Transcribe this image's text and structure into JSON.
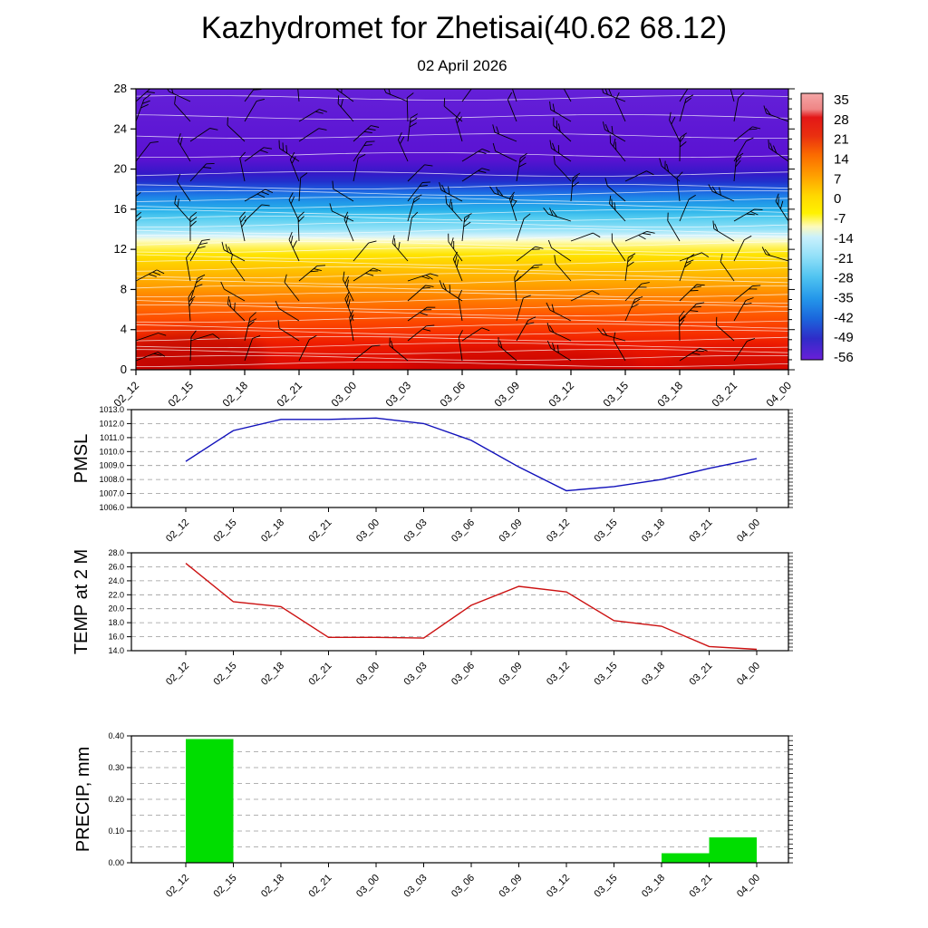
{
  "title": "Kazhydromet for Zhetisai(40.62 68.12)",
  "subtitle": "02 April 2026",
  "time_labels": [
    "02_12",
    "02_15",
    "02_18",
    "02_21",
    "03_00",
    "03_03",
    "03_06",
    "03_09",
    "03_12",
    "03_15",
    "03_18",
    "03_21",
    "04_00"
  ],
  "chart_data": [
    {
      "type": "heatmap",
      "name": "cross-section",
      "title": "02 April 2026",
      "description": "Time-height cross section: temperature shading with white contour lines and black wind barbs",
      "x_labels": [
        "02_12",
        "02_15",
        "02_18",
        "02_21",
        "03_00",
        "03_03",
        "03_06",
        "03_09",
        "03_12",
        "03_15",
        "03_18",
        "03_21",
        "04_00"
      ],
      "y_ticks": [
        "28",
        "24",
        "20",
        "16",
        "12",
        "8",
        "4",
        "0"
      ],
      "ylim": [
        0,
        28
      ],
      "fill_gradient_top_to_bottom": [
        [
          0,
          "#6420d8"
        ],
        [
          0.25,
          "#5a12d2"
        ],
        [
          0.3,
          "#3518c8"
        ],
        [
          0.33,
          "#2230cc"
        ],
        [
          0.36,
          "#1d5ee0"
        ],
        [
          0.39,
          "#1e8ae8"
        ],
        [
          0.43,
          "#27b0ea"
        ],
        [
          0.46,
          "#55cdf0"
        ],
        [
          0.5,
          "#93e2f8"
        ],
        [
          0.525,
          "#d8f4fb"
        ],
        [
          0.54,
          "#fdfcc8"
        ],
        [
          0.56,
          "#fff46a"
        ],
        [
          0.59,
          "#ffe400"
        ],
        [
          0.64,
          "#ffc400"
        ],
        [
          0.7,
          "#ffa000"
        ],
        [
          0.75,
          "#ff7d00"
        ],
        [
          0.8,
          "#ff5a00"
        ],
        [
          0.86,
          "#f93600"
        ],
        [
          0.91,
          "#ee1c00"
        ],
        [
          1,
          "#d80600"
        ]
      ],
      "colorbar": {
        "tick_labels": [
          "35",
          "28",
          "21",
          "14",
          "7",
          "0",
          "-7",
          "-14",
          "-21",
          "-28",
          "-35",
          "-42",
          "-49",
          "-56"
        ],
        "gradient_top_to_bottom": [
          [
            0,
            "#f4a6a6"
          ],
          [
            0.06,
            "#ef8585"
          ],
          [
            0.09,
            "#e31717"
          ],
          [
            0.16,
            "#e93010"
          ],
          [
            0.23,
            "#fb6a00"
          ],
          [
            0.31,
            "#ffa000"
          ],
          [
            0.385,
            "#ffd800"
          ],
          [
            0.45,
            "#fff200"
          ],
          [
            0.5,
            "#fdfabc"
          ],
          [
            0.54,
            "#c9f0fc"
          ],
          [
            0.615,
            "#8fdff8"
          ],
          [
            0.69,
            "#4fc3f0"
          ],
          [
            0.77,
            "#2497ea"
          ],
          [
            0.845,
            "#1b66dc"
          ],
          [
            0.92,
            "#2f2cc8"
          ],
          [
            1,
            "#6a1fd8"
          ]
        ]
      },
      "overlays": [
        "white-contour-lines",
        "wind-barbs"
      ]
    },
    {
      "type": "line",
      "name": "pmsl",
      "ylabel": "PMSL",
      "color": "#1111bb",
      "x_labels": [
        "02_12",
        "02_15",
        "02_18",
        "02_21",
        "03_00",
        "03_03",
        "03_06",
        "03_09",
        "03_12",
        "03_15",
        "03_18",
        "03_21",
        "04_00"
      ],
      "values": [
        1009.3,
        1011.5,
        1012.3,
        1012.3,
        1012.4,
        1012.0,
        1010.8,
        1008.9,
        1007.2,
        1007.5,
        1008.0,
        1008.8,
        1009.5
      ],
      "ylim": [
        1006,
        1013
      ],
      "y_ticks": [
        "1013.0",
        "1012.0",
        "1011.0",
        "1010.0",
        "1009.0",
        "1008.0",
        "1007.0",
        "1006.0"
      ],
      "grid_values": [
        1007,
        1008,
        1009,
        1010,
        1011,
        1012
      ],
      "grid_on": true,
      "legend": "none"
    },
    {
      "type": "line",
      "name": "temp2m",
      "ylabel": "TEMP at 2 M",
      "color": "#cc1111",
      "x_labels": [
        "02_12",
        "02_15",
        "02_18",
        "02_21",
        "03_00",
        "03_03",
        "03_06",
        "03_09",
        "03_12",
        "03_15",
        "03_18",
        "03_21",
        "04_00"
      ],
      "values": [
        26.5,
        21.0,
        20.3,
        15.9,
        15.9,
        15.8,
        20.5,
        23.2,
        22.4,
        18.3,
        17.5,
        14.6,
        14.2
      ],
      "ylim": [
        14,
        28
      ],
      "y_ticks": [
        "28.0",
        "26.0",
        "24.0",
        "22.0",
        "20.0",
        "18.0",
        "16.0",
        "14.0"
      ],
      "grid_values": [
        16,
        18,
        20,
        22,
        24,
        26
      ],
      "grid_on": true,
      "legend": "none"
    },
    {
      "type": "bar",
      "name": "precip",
      "ylabel": "PRECIP, mm",
      "color": "#00dd00",
      "x_labels": [
        "02_12",
        "02_15",
        "02_18",
        "02_21",
        "03_00",
        "03_03",
        "03_06",
        "03_09",
        "03_12",
        "03_15",
        "03_18",
        "03_21",
        "04_00"
      ],
      "values": [
        0,
        0.39,
        0,
        0,
        0,
        0,
        0,
        0,
        0,
        0,
        0,
        0.03,
        0.08
      ],
      "ylim": [
        0,
        0.4
      ],
      "y_ticks": [
        "0.40",
        "0.30",
        "0.20",
        "0.10",
        "0.00"
      ],
      "grid_values": [
        0.05,
        0.1,
        0.15,
        0.2,
        0.25,
        0.3,
        0.35
      ],
      "grid_on": true,
      "legend": "none"
    }
  ]
}
